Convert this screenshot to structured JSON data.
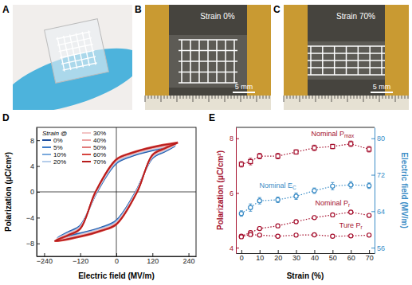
{
  "photos": [
    {
      "label": "A"
    },
    {
      "label": "B",
      "text": "Strain 0%",
      "scale_bar": "5 mm"
    },
    {
      "label": "C",
      "text": "Strain 70%",
      "scale_bar": "5 mm"
    }
  ],
  "chart_data": [
    {
      "type": "line",
      "panel_label": "D",
      "xlabel": "Electric field (MV/m)",
      "ylabel": "Polarization (μC/cm²)",
      "xlim": [
        -265,
        265
      ],
      "xticks": [
        {
          "value": -240,
          "label": "−240"
        },
        {
          "value": -120,
          "label": "−120"
        },
        0,
        120,
        240
      ],
      "ylim": [
        -10,
        10
      ],
      "yticks": [
        {
          "value": -8,
          "label": "−8"
        },
        {
          "value": -4,
          "label": "−4"
        },
        0,
        4,
        8
      ],
      "legend": "upper left",
      "legend_title": "Strain @",
      "series": [
        {
          "name": "0%",
          "color": "#1f4e9c",
          "x": [
            195,
            120,
            50,
            0,
            -64,
            -120,
            -160,
            -195,
            -120,
            -50,
            0,
            64,
            120,
            160,
            195
          ],
          "values": [
            7.1,
            6.4,
            5.5,
            4.4,
            0,
            -5.2,
            -6.2,
            -7.1,
            -6.4,
            -5.5,
            -4.4,
            0,
            5.2,
            6.2,
            7.1
          ]
        },
        {
          "name": "5%",
          "color": "#3d7cc9",
          "x": [
            196,
            120,
            50,
            0,
            -65,
            -120,
            -160,
            -196,
            -120,
            -50,
            0,
            65,
            120,
            160,
            196
          ],
          "values": [
            7.2,
            6.5,
            5.6,
            4.5,
            0,
            -5.3,
            -6.3,
            -7.2,
            -6.5,
            -5.6,
            -4.5,
            0,
            5.3,
            6.3,
            7.2
          ]
        },
        {
          "name": "10%",
          "color": "#7aa9dc",
          "x": [
            197,
            120,
            50,
            0,
            -66,
            -120,
            -160,
            -197,
            -120,
            -50,
            0,
            66,
            120,
            160,
            197
          ],
          "values": [
            7.3,
            6.6,
            5.7,
            4.6,
            0,
            -5.4,
            -6.4,
            -7.3,
            -6.6,
            -5.7,
            -4.6,
            0,
            5.4,
            6.4,
            7.3
          ]
        },
        {
          "name": "20%",
          "color": "#b5cdea",
          "x": [
            198,
            120,
            50,
            0,
            -66,
            -120,
            -160,
            -198,
            -120,
            -50,
            0,
            66,
            120,
            160,
            198
          ],
          "values": [
            7.3,
            6.6,
            5.7,
            4.7,
            0,
            -5.4,
            -6.4,
            -7.3,
            -6.6,
            -5.7,
            -4.7,
            0,
            5.4,
            6.4,
            7.3
          ]
        },
        {
          "name": "30%",
          "color": "#f2c4c4",
          "x": [
            199,
            120,
            50,
            0,
            -67,
            -120,
            -160,
            -199,
            -120,
            -50,
            0,
            67,
            120,
            160,
            199
          ],
          "values": [
            7.4,
            6.7,
            5.8,
            4.8,
            0,
            -5.5,
            -6.5,
            -7.4,
            -6.7,
            -5.8,
            -4.8,
            0,
            5.5,
            6.5,
            7.4
          ]
        },
        {
          "name": "40%",
          "color": "#eda3a3",
          "x": [
            200,
            120,
            50,
            0,
            -68,
            -120,
            -160,
            -200,
            -120,
            -50,
            0,
            68,
            120,
            160,
            200
          ],
          "values": [
            7.5,
            6.8,
            5.9,
            4.9,
            0,
            -5.6,
            -6.6,
            -7.5,
            -6.8,
            -5.9,
            -4.9,
            0,
            5.6,
            6.6,
            7.5
          ]
        },
        {
          "name": "50%",
          "color": "#e07a7a",
          "x": [
            202,
            120,
            50,
            0,
            -69,
            -120,
            -160,
            -202,
            -120,
            -50,
            0,
            69,
            120,
            160,
            202
          ],
          "values": [
            7.6,
            6.9,
            6.0,
            5.0,
            0,
            -5.7,
            -6.7,
            -7.6,
            -6.9,
            -6.0,
            -5.0,
            0,
            5.7,
            6.7,
            7.6
          ]
        },
        {
          "name": "60%",
          "color": "#d6453f",
          "x": [
            204,
            120,
            50,
            0,
            -70,
            -120,
            -160,
            -204,
            -120,
            -50,
            0,
            70,
            120,
            160,
            204
          ],
          "values": [
            7.7,
            7.0,
            6.1,
            5.1,
            0,
            -5.8,
            -6.8,
            -7.7,
            -7.0,
            -6.1,
            -5.1,
            0,
            5.8,
            6.8,
            7.7
          ]
        },
        {
          "name": "70%",
          "color": "#b71c1c",
          "x": [
            205,
            120,
            50,
            0,
            -69,
            -120,
            -160,
            -205,
            -120,
            -50,
            0,
            69,
            120,
            160,
            205
          ],
          "values": [
            7.6,
            6.9,
            6.0,
            5.0,
            0,
            -5.7,
            -6.7,
            -7.6,
            -6.9,
            -6.0,
            -5.0,
            0,
            5.7,
            6.7,
            7.6
          ]
        }
      ]
    },
    {
      "type": "line",
      "panel_label": "E",
      "xlabel": "Strain (%)",
      "ylabel": "Polarization (μC/cm²)",
      "y2label": "Electric field (MV/m)",
      "x": [
        0,
        5,
        10,
        20,
        30,
        40,
        50,
        60,
        70
      ],
      "xlim": [
        -3,
        73
      ],
      "xticks": [
        0,
        10,
        20,
        30,
        40,
        50,
        60,
        70
      ],
      "ylim": [
        3.8,
        8.4
      ],
      "yticks": [
        4,
        6,
        8
      ],
      "y2lim": [
        54.8,
        82.4
      ],
      "y2ticks": [
        56,
        64,
        72,
        80
      ],
      "series": [
        {
          "name": "Nominal Pmax",
          "color": "#a50f2d",
          "marker": "square",
          "line_style": "dotted",
          "values": [
            7.05,
            7.15,
            7.35,
            7.35,
            7.5,
            7.65,
            7.7,
            7.8,
            7.6
          ],
          "errors": [
            0.1,
            0.12,
            0.1,
            0.1,
            0.08,
            0.1,
            0.08,
            0.1,
            0.1
          ]
        },
        {
          "name": "Nominal EC",
          "color": "#3a8cc6",
          "marker": "circle",
          "line_style": "dotted",
          "axis": "y2",
          "values": [
            63.5,
            64.8,
            66.3,
            66.5,
            67.3,
            68.5,
            69.5,
            69.8,
            69.6
          ],
          "errors": [
            0.6,
            0.8,
            0.7,
            0.6,
            0.7,
            0.6,
            0.8,
            0.7,
            0.6
          ]
        },
        {
          "name": "Nominal Pr",
          "color": "#a50f2d",
          "marker": "circle",
          "line_style": "dotted",
          "values": [
            4.42,
            4.55,
            4.7,
            4.8,
            4.95,
            5.1,
            5.2,
            5.3,
            5.18
          ],
          "errors": [
            0.06,
            0.06,
            0.06,
            0.06,
            0.06,
            0.06,
            0.06,
            0.06,
            0.06
          ]
        },
        {
          "name": "Ture Pr",
          "color": "#a50f2d",
          "marker": "circle",
          "line_style": "dotted",
          "values": [
            4.4,
            4.48,
            4.46,
            4.42,
            4.46,
            4.47,
            4.42,
            4.43,
            4.46
          ],
          "errors": [
            0.05,
            0.05,
            0.05,
            0.05,
            0.05,
            0.05,
            0.05,
            0.05,
            0.05
          ]
        }
      ]
    }
  ]
}
